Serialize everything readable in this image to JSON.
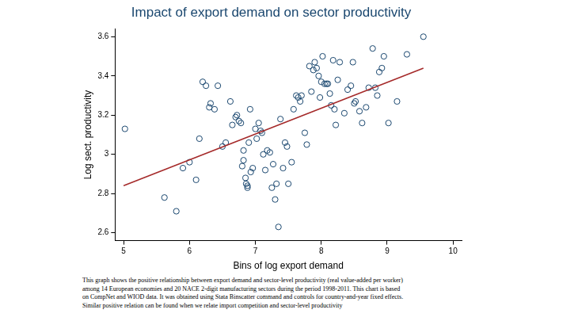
{
  "chart_data": {
    "type": "scatter",
    "title": "Impact of export demand on sector productivity",
    "x_label": "Bins of log export demand",
    "y_label": "Log sect. productivity",
    "xlim": [
      4.87,
      10.13
    ],
    "ylim": [
      2.56,
      3.64
    ],
    "xticks": [
      5,
      6,
      7,
      8,
      9,
      10
    ],
    "yticks": [
      2.6,
      2.8,
      3,
      3.2,
      3.4,
      3.6
    ],
    "grid": false,
    "series": [
      {
        "type": "scatter",
        "marker": "circle",
        "color": "#1a476f",
        "x": [
          5.02,
          5.62,
          5.8,
          5.9,
          6.0,
          6.1,
          6.15,
          6.2,
          6.25,
          6.3,
          6.32,
          6.38,
          6.43,
          6.5,
          6.55,
          6.62,
          6.65,
          6.7,
          6.72,
          6.75,
          6.78,
          6.8,
          6.82,
          6.82,
          6.85,
          6.86,
          6.88,
          6.88,
          6.9,
          6.92,
          6.93,
          6.96,
          7.0,
          7.02,
          7.05,
          7.08,
          7.1,
          7.12,
          7.15,
          7.18,
          7.22,
          7.25,
          7.27,
          7.3,
          7.32,
          7.35,
          7.38,
          7.42,
          7.45,
          7.48,
          7.5,
          7.55,
          7.58,
          7.62,
          7.65,
          7.68,
          7.7,
          7.75,
          7.78,
          7.82,
          7.85,
          7.88,
          7.9,
          7.93,
          7.96,
          7.98,
          8.0,
          8.02,
          8.05,
          8.08,
          8.1,
          8.13,
          8.15,
          8.18,
          8.2,
          8.22,
          8.25,
          8.28,
          8.35,
          8.4,
          8.45,
          8.48,
          8.5,
          8.52,
          8.58,
          8.62,
          8.68,
          8.72,
          8.78,
          8.82,
          8.85,
          8.88,
          8.92,
          8.95,
          9.02,
          9.15,
          9.3,
          9.55
        ],
        "values": [
          3.13,
          2.78,
          2.71,
          2.93,
          2.96,
          2.87,
          3.08,
          3.37,
          3.35,
          3.24,
          3.26,
          3.23,
          3.35,
          3.04,
          3.06,
          3.27,
          3.15,
          3.19,
          3.2,
          3.17,
          3.16,
          2.94,
          3.02,
          2.97,
          2.88,
          2.85,
          2.84,
          2.83,
          3.06,
          3.23,
          2.91,
          2.93,
          3.13,
          3.08,
          3.16,
          3.12,
          3.11,
          3.0,
          2.92,
          3.02,
          3.01,
          2.83,
          2.95,
          2.77,
          2.85,
          2.63,
          3.18,
          2.93,
          3.06,
          3.04,
          2.85,
          2.96,
          3.23,
          3.3,
          3.29,
          3.27,
          3.3,
          3.11,
          3.05,
          3.45,
          3.32,
          3.43,
          3.47,
          3.44,
          3.4,
          3.29,
          3.37,
          3.5,
          3.36,
          3.36,
          3.36,
          3.31,
          3.25,
          3.48,
          3.23,
          3.15,
          3.38,
          3.47,
          3.21,
          3.33,
          3.35,
          3.47,
          3.26,
          3.27,
          3.22,
          3.16,
          3.24,
          3.34,
          3.54,
          3.34,
          3.3,
          3.42,
          3.44,
          3.5,
          3.16,
          3.27,
          3.51,
          3.6
        ]
      },
      {
        "type": "line",
        "line_style": "solid",
        "color": "#a52a2a",
        "x": [
          5.0,
          9.55
        ],
        "values": [
          2.84,
          3.44
        ]
      }
    ],
    "caption": [
      "This graph shows the positive relationship between export demand and sector-level productivity (real value-added per worker)",
      "among 14 European economies and 20 NACE 2-digit manufacturing sectors during the period 1998-2011. This chart is based",
      "on CompNet and WIOD data. It was obtained using Stata Binscatter command and controls for country-and-year fixed effects.",
      "Similar positive relation can be found when we relate import competition and sector-level productivity"
    ]
  }
}
